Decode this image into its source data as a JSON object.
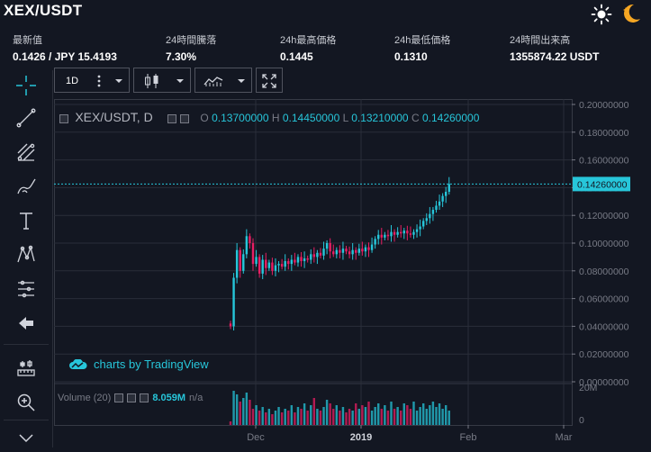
{
  "header": {
    "title": "XEX/USDT"
  },
  "stats": [
    {
      "label": "最新值",
      "value": "0.1426 / JPY 15.4193"
    },
    {
      "label": "24時間騰落",
      "value": "7.30%"
    },
    {
      "label": "24h最高価格",
      "value": "0.1445"
    },
    {
      "label": "24h最低価格",
      "value": "0.1310"
    },
    {
      "label": "24時間出来高",
      "value": "1355874.22 USDT"
    }
  ],
  "toolbar": {
    "interval": "1D"
  },
  "legend": {
    "symbol": "XEX/USDT, D",
    "o_label": "O",
    "o_value": "0.13700000",
    "h_label": "H",
    "h_value": "0.14450000",
    "l_label": "L",
    "l_value": "0.13210000",
    "c_label": "C",
    "c_value": "0.14260000"
  },
  "watermark": "charts by TradingView",
  "volume": {
    "label": "Volume (20)",
    "value": "8.059M",
    "extra": "n/a"
  },
  "colors": {
    "up": "#26c6da",
    "down": "#e91e63",
    "accent": "#27c6da",
    "bg": "#131722",
    "grid": "#2a2e39"
  },
  "chart_data": {
    "type": "candlestick",
    "price_axis": [
      "0.20000000",
      "0.18000000",
      "0.16000000",
      "0.14000000",
      "0.12000000",
      "0.10000000",
      "0.08000000",
      "0.06000000",
      "0.04000000",
      "0.02000000",
      "0.00000000"
    ],
    "price_label": "0.14260000",
    "volume_axis": [
      "20M",
      "0"
    ],
    "time_axis": [
      "Dec",
      "2019",
      "Feb",
      "Mar"
    ],
    "ylim": [
      0,
      0.2
    ],
    "last_close": 0.1426,
    "closes": [
      0.04,
      0.075,
      0.095,
      0.08,
      0.092,
      0.105,
      0.1,
      0.085,
      0.09,
      0.078,
      0.088,
      0.082,
      0.086,
      0.08,
      0.084,
      0.085,
      0.083,
      0.087,
      0.085,
      0.088,
      0.086,
      0.09,
      0.087,
      0.089,
      0.088,
      0.092,
      0.09,
      0.093,
      0.091,
      0.096,
      0.1,
      0.094,
      0.092,
      0.095,
      0.093,
      0.096,
      0.094,
      0.092,
      0.095,
      0.093,
      0.096,
      0.094,
      0.097,
      0.095,
      0.099,
      0.103,
      0.106,
      0.104,
      0.106,
      0.105,
      0.108,
      0.106,
      0.108,
      0.107,
      0.109,
      0.107,
      0.106,
      0.108,
      0.11,
      0.112,
      0.116,
      0.118,
      0.121,
      0.124,
      0.127,
      0.13,
      0.134,
      0.137,
      0.1426
    ],
    "volumes": [
      2,
      19,
      17,
      13,
      15,
      18,
      14,
      9,
      11,
      8,
      10,
      7,
      9,
      6,
      8,
      10,
      7,
      9,
      8,
      11,
      7,
      10,
      9,
      12,
      8,
      11,
      15,
      9,
      8,
      10,
      14,
      12,
      9,
      11,
      8,
      10,
      7,
      9,
      8,
      12,
      9,
      11,
      10,
      13,
      8,
      10,
      12,
      9,
      11,
      8,
      13,
      9,
      10,
      8,
      12,
      11,
      9,
      13,
      8,
      10,
      12,
      9,
      11,
      13,
      10,
      12,
      9,
      11,
      8
    ]
  }
}
